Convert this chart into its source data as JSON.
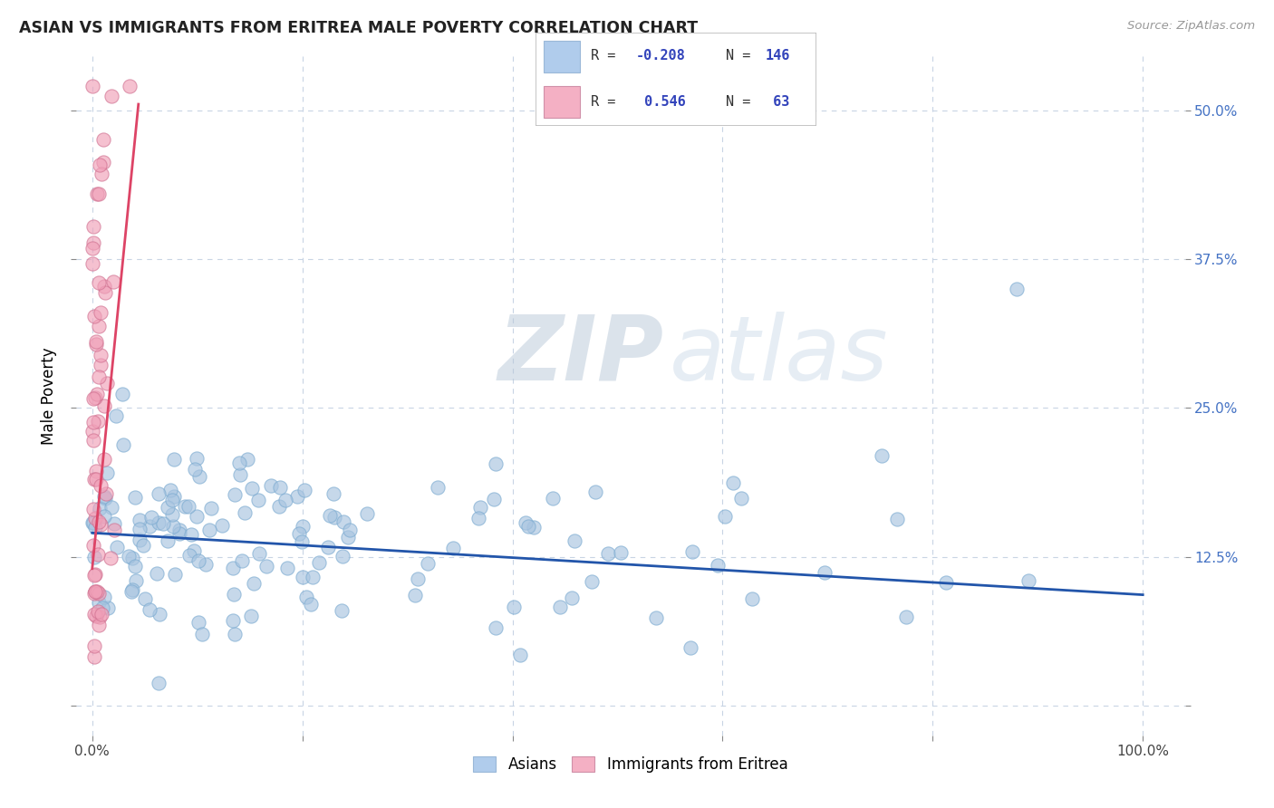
{
  "title": "ASIAN VS IMMIGRANTS FROM ERITREA MALE POVERTY CORRELATION CHART",
  "source": "Source: ZipAtlas.com",
  "ylabel": "Male Poverty",
  "xlabel": "",
  "x_ticks": [
    0.0,
    0.2,
    0.4,
    0.6,
    0.8,
    1.0
  ],
  "x_tick_labels": [
    "0.0%",
    "",
    "",
    "",
    "",
    "100.0%"
  ],
  "y_ticks": [
    0.0,
    0.125,
    0.25,
    0.375,
    0.5
  ],
  "y_tick_labels": [
    "",
    "12.5%",
    "25.0%",
    "37.5%",
    "50.0%"
  ],
  "asian_color": "#a8c4e0",
  "eritrea_color": "#f0a0b8",
  "asian_line_color": "#2255aa",
  "eritrea_line_color": "#dd4466",
  "legend_box_color_asian": "#b0ccec",
  "legend_box_color_eritrea": "#f4b0c4",
  "legend_text_color": "#3344bb",
  "R_asian": -0.208,
  "N_asian": 146,
  "R_eritrea": 0.546,
  "N_eritrea": 63,
  "watermark_zip": "ZIP",
  "watermark_atlas": "atlas",
  "background_color": "#ffffff",
  "grid_color": "#c8d4e4",
  "xlim": [
    -0.015,
    1.04
  ],
  "ylim": [
    -0.025,
    0.545
  ],
  "asian_trend_x": [
    0.0,
    1.0
  ],
  "asian_trend_y": [
    0.145,
    0.093
  ],
  "eritrea_trend_x": [
    0.0,
    0.044
  ],
  "eritrea_trend_y": [
    0.115,
    0.505
  ]
}
